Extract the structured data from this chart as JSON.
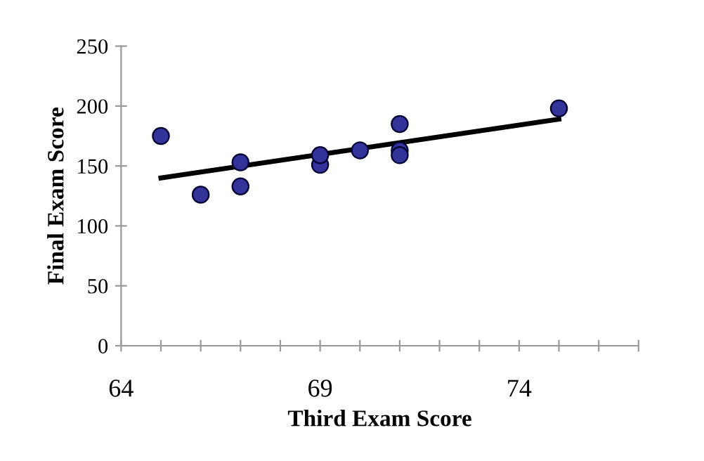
{
  "chart_data": {
    "type": "scatter",
    "xlabel": "Third Exam Score",
    "ylabel": "Final Exam Score",
    "xlim": [
      64,
      77
    ],
    "xticks": [
      64,
      {
        "value": 65,
        "label": null
      },
      {
        "value": 66,
        "label": null
      },
      {
        "value": 67,
        "label": null
      },
      {
        "value": 68,
        "label": null
      },
      69,
      {
        "value": 70,
        "label": null
      },
      {
        "value": 71,
        "label": null
      },
      {
        "value": 72,
        "label": null
      },
      {
        "value": 73,
        "label": null
      },
      74,
      {
        "value": 75,
        "label": null
      },
      {
        "value": 76,
        "label": null
      },
      {
        "value": 77,
        "label": null
      }
    ],
    "ylim": [
      0,
      250
    ],
    "yticks": [
      0,
      50,
      100,
      150,
      200,
      250
    ],
    "grid": false,
    "legend": false,
    "marker": "circle",
    "series": [
      {
        "color": "#333399",
        "x": [
          65,
          67,
          71,
          71,
          66,
          75,
          67,
          70,
          71,
          69,
          69
        ],
        "values": [
          175,
          133,
          185,
          163,
          126,
          198,
          153,
          163,
          159,
          151,
          159
        ]
      },
      {
        "type": "line",
        "color": "#000000",
        "x": [
          65,
          75
        ],
        "values": [
          140,
          189
        ],
        "line_style": "solid",
        "marker": "none"
      }
    ]
  }
}
